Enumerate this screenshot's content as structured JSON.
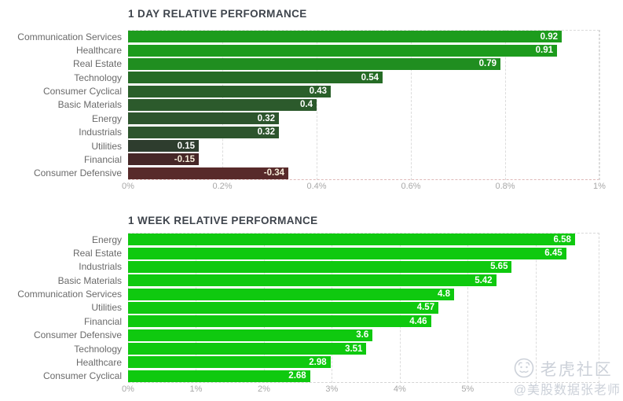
{
  "colors": {
    "title_text": "#3e444c",
    "category_text": "#6a6a6a",
    "tick_text": "#a8a8a8",
    "value_text_positive": "#ffffff",
    "value_text_negative": "#f6eeda",
    "grid_dash": "#dcdcdc",
    "watermark": "#ccd1d9"
  },
  "chart_data": [
    {
      "type": "bar",
      "orientation": "horizontal",
      "title": "1 DAY RELATIVE PERFORMANCE",
      "categories": [
        "Communication Services",
        "Healthcare",
        "Real Estate",
        "Technology",
        "Consumer Cyclical",
        "Basic Materials",
        "Energy",
        "Industrials",
        "Utilities",
        "Financial",
        "Consumer Defensive"
      ],
      "values": [
        0.92,
        0.91,
        0.79,
        0.54,
        0.43,
        0.4,
        0.32,
        0.32,
        0.15,
        -0.15,
        -0.34
      ],
      "value_labels": [
        "0.92",
        "0.91",
        "0.79",
        "0.54",
        "0.43",
        "0.4",
        "0.32",
        "0.32",
        "0.15",
        "-0.15",
        "-0.34"
      ],
      "bar_colors": [
        "#1d9c1d",
        "#1d9b1d",
        "#208e20",
        "#266c26",
        "#2a5f2a",
        "#2c5a2c",
        "#2d552d",
        "#2d552d",
        "#2e3d2e",
        "#462727",
        "#582a2a"
      ],
      "xlim": [
        0,
        1.0
      ],
      "bar_length_unit": "absolute value of percent",
      "grid": "dashed vertical",
      "axis_line_color": "#dfb9b9",
      "ticks": [
        {
          "value": 0,
          "label": "0%"
        },
        {
          "value": 0.2,
          "label": "0.2%"
        },
        {
          "value": 0.4,
          "label": "0.4%"
        },
        {
          "value": 0.6,
          "label": "0.6%"
        },
        {
          "value": 0.8,
          "label": "0.8%"
        },
        {
          "value": 1.0,
          "label": "1%"
        }
      ]
    },
    {
      "type": "bar",
      "orientation": "horizontal",
      "title": "1 WEEK RELATIVE PERFORMANCE",
      "categories": [
        "Energy",
        "Real Estate",
        "Industrials",
        "Basic Materials",
        "Communication Services",
        "Utilities",
        "Financial",
        "Consumer Defensive",
        "Technology",
        "Healthcare",
        "Consumer Cyclical"
      ],
      "values": [
        6.58,
        6.45,
        5.65,
        5.42,
        4.8,
        4.57,
        4.46,
        3.6,
        3.51,
        2.98,
        2.68
      ],
      "value_labels": [
        "6.58",
        "6.45",
        "5.65",
        "5.42",
        "4.8",
        "4.57",
        "4.46",
        "3.6",
        "3.51",
        "2.98",
        "2.68"
      ],
      "bar_colors": [
        "#0fc90f",
        "#0fc90f",
        "#0fc90f",
        "#0fc90f",
        "#0fc90f",
        "#0fc90f",
        "#0fc90f",
        "#0fc90f",
        "#0fc90f",
        "#0fc90f",
        "#0fc90f"
      ],
      "xlim": [
        0,
        6.94
      ],
      "bar_length_unit": "percent",
      "grid": "dashed vertical",
      "axis_line_color": "#d4d4d4",
      "ticks": [
        {
          "value": 0,
          "label": "0%"
        },
        {
          "value": 1,
          "label": "1%"
        },
        {
          "value": 2,
          "label": "2%"
        },
        {
          "value": 3,
          "label": "3%"
        },
        {
          "value": 4,
          "label": "4%"
        },
        {
          "value": 5,
          "label": "5%"
        },
        {
          "value": 6,
          "label": ""
        }
      ]
    }
  ],
  "watermark": {
    "logo": "tiger-community-logo",
    "line1": "老虎社区",
    "line2": "@美股数据张老师"
  }
}
